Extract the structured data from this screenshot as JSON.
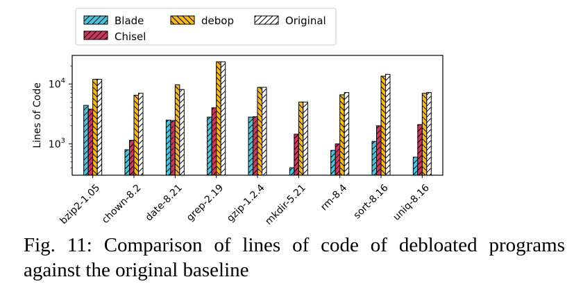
{
  "caption": "Fig. 11: Comparison of lines of code of debloated programs against the original baseline",
  "chart_data": {
    "type": "bar",
    "ylabel": "Lines of Code",
    "xlabel": "",
    "y_scale": "log",
    "ylim": [
      300,
      30000
    ],
    "y_ticks": [
      {
        "value": 1000,
        "base": "10",
        "exp": "3"
      },
      {
        "value": 10000,
        "base": "10",
        "exp": "4"
      }
    ],
    "legend_position": "top-left",
    "categories": [
      "bzip2-1.05",
      "chown-8.2",
      "date-8.21",
      "grep-2.19",
      "gzip-1.2.4",
      "mkdir-5.21",
      "rm-8.4",
      "sort-8.16",
      "uniq-8.16"
    ],
    "series": [
      {
        "name": "Blade",
        "color": "#4fc3d9",
        "values": [
          4400,
          800,
          2500,
          2800,
          2800,
          400,
          780,
          1100,
          600
        ]
      },
      {
        "name": "Chisel",
        "color": "#c8385f",
        "values": [
          3800,
          1150,
          2450,
          4000,
          2850,
          1450,
          1000,
          2000,
          2100
        ]
      },
      {
        "name": "debop",
        "color": "#f6b81c",
        "values": [
          12000,
          6500,
          9700,
          23500,
          8800,
          5000,
          6600,
          13500,
          7000
        ]
      },
      {
        "name": "Original",
        "color": "#ffffff",
        "values": [
          12000,
          7000,
          8100,
          23500,
          8800,
          5000,
          7200,
          14500,
          7200
        ]
      }
    ]
  }
}
